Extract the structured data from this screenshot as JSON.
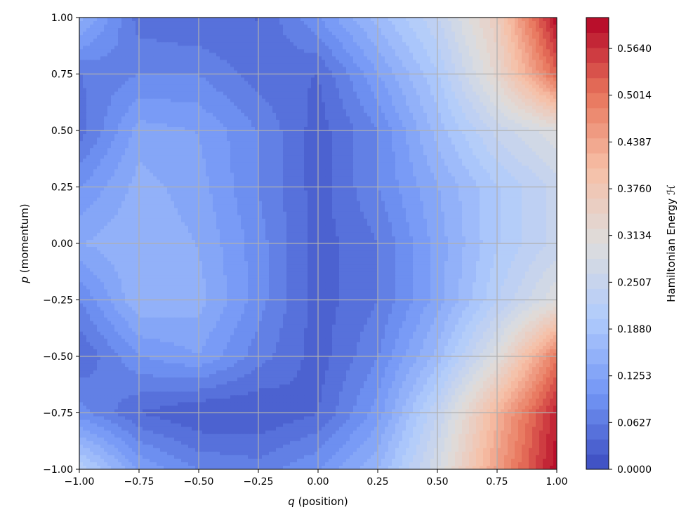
{
  "chart_data": {
    "type": "heatmap",
    "subtype": "filled-contour",
    "title": "",
    "xlabel_var": "q",
    "xlabel_rest": " (position)",
    "ylabel_var": "p",
    "ylabel_rest": " (momentum)",
    "xlim": [
      -1.0,
      1.0
    ],
    "ylim": [
      -1.0,
      1.0
    ],
    "xticks": [
      "−1.00",
      "−0.75",
      "−0.50",
      "−0.25",
      "0.00",
      "0.25",
      "0.50",
      "0.75",
      "1.00"
    ],
    "yticks": [
      "−1.00",
      "−0.75",
      "−0.50",
      "−0.25",
      "0.00",
      "0.25",
      "0.50",
      "0.75",
      "1.00"
    ],
    "grid": true,
    "colormap": "coolwarm",
    "colormap_stops": [
      "#3b4cc0",
      "#7396f5",
      "#b0cbfc",
      "#dddddd",
      "#f6bfa6",
      "#e7745b",
      "#b40426"
    ],
    "levels": 30,
    "zlim": [
      0.0,
      0.6055
    ],
    "colorbar": {
      "label": "Hamiltonian Energy ℋ",
      "ticks": [
        "0.0000",
        "0.0627",
        "0.1253",
        "0.1880",
        "0.2507",
        "0.3134",
        "0.3760",
        "0.4387",
        "0.5014",
        "0.5640"
      ],
      "tick_values": [
        0.0,
        0.0627,
        0.1253,
        0.188,
        0.2507,
        0.3134,
        0.376,
        0.4387,
        0.5014,
        0.564
      ]
    },
    "field_samples": {
      "q": [
        -1.0,
        -0.75,
        -0.5,
        -0.25,
        0.0,
        0.25,
        0.5,
        0.75,
        1.0
      ],
      "p": [
        1.0,
        0.75,
        0.5,
        0.25,
        0.0,
        -0.25,
        -0.5,
        -0.75,
        -1.0
      ],
      "z": [
        [
          0.15,
          0.05,
          0.04,
          0.04,
          0.1,
          0.17,
          0.24,
          0.36,
          0.6
        ],
        [
          0.06,
          0.08,
          0.08,
          0.05,
          0.04,
          0.12,
          0.2,
          0.33,
          0.52
        ],
        [
          0.05,
          0.13,
          0.12,
          0.08,
          0.03,
          0.08,
          0.17,
          0.25,
          0.3
        ],
        [
          0.1,
          0.15,
          0.13,
          0.08,
          0.03,
          0.08,
          0.14,
          0.2,
          0.25
        ],
        [
          0.14,
          0.16,
          0.14,
          0.09,
          0.03,
          0.06,
          0.13,
          0.2,
          0.25
        ],
        [
          0.08,
          0.16,
          0.15,
          0.09,
          0.03,
          0.06,
          0.13,
          0.22,
          0.3
        ],
        [
          0.04,
          0.1,
          0.12,
          0.07,
          0.03,
          0.08,
          0.17,
          0.3,
          0.5
        ],
        [
          0.09,
          0.04,
          0.02,
          0.02,
          0.04,
          0.11,
          0.24,
          0.42,
          0.58
        ],
        [
          0.22,
          0.12,
          0.08,
          0.07,
          0.1,
          0.16,
          0.28,
          0.45,
          0.6
        ]
      ]
    }
  }
}
